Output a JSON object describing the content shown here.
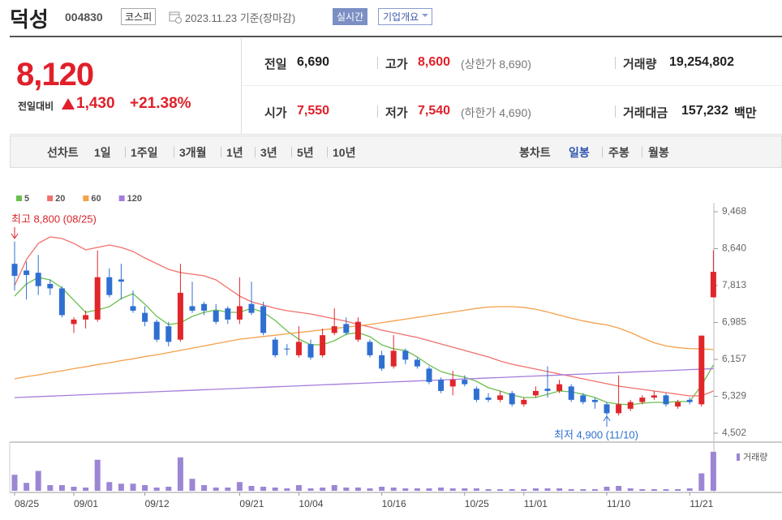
{
  "header": {
    "name": "덕성",
    "code": "004830",
    "market": "코스피",
    "date": "2023.11.23 기준(장마감)",
    "realtime": "실시간",
    "company_info": "기업개요"
  },
  "quote": {
    "price": "8,120",
    "change_label": "전일대비",
    "change": "1,430",
    "change_rate": "+21.38%"
  },
  "stats": [
    {
      "label": "전일",
      "value": "6,690"
    },
    {
      "label": "고가",
      "value": "8,600",
      "note": "(상한가 8,690)"
    },
    {
      "label": "거래량",
      "value": "19,254,802"
    },
    {
      "label": "시가",
      "value": "7,550"
    },
    {
      "label": "저가",
      "value": "7,540",
      "note": "(하한가 4,690)"
    },
    {
      "label": "거래대금",
      "value": "157,232",
      "unit": "백만"
    }
  ],
  "tabs": {
    "line_label": "선차트",
    "line_periods": [
      "1일",
      "1주일",
      "3개월",
      "1년",
      "3년",
      "5년",
      "10년"
    ],
    "candle_label": "봉차트",
    "candle_periods": [
      "일봉",
      "주봉",
      "월봉"
    ]
  },
  "chart_data": {
    "type": "candlestick",
    "categories": [
      "08/25",
      null,
      null,
      null,
      null,
      "09/01",
      null,
      null,
      null,
      null,
      null,
      "09/12",
      null,
      null,
      null,
      null,
      null,
      null,
      null,
      "09/21",
      null,
      null,
      null,
      null,
      "10/04",
      null,
      null,
      null,
      null,
      null,
      null,
      "10/16",
      null,
      null,
      null,
      null,
      null,
      null,
      "10/25",
      null,
      null,
      null,
      null,
      "11/01",
      null,
      null,
      null,
      null,
      null,
      null,
      "11/10",
      null,
      null,
      null,
      null,
      null,
      null,
      "11/21",
      null,
      null
    ],
    "open": [
      8300,
      8150,
      8100,
      7850,
      7750,
      6950,
      7050,
      7050,
      8000,
      7950,
      7350,
      7200,
      7000,
      6900,
      6600,
      7350,
      7400,
      7250,
      7300,
      7050,
      7400,
      7350,
      6600,
      6400,
      6250,
      6500,
      6250,
      6750,
      6950,
      6600,
      6550,
      6250,
      6000,
      6350,
      6150,
      5950,
      5700,
      5550,
      5700,
      5500,
      5300,
      5250,
      5400,
      5150,
      5350,
      5500,
      5450,
      5550,
      5350,
      5250,
      5150,
      4950,
      5050,
      5200,
      5300,
      5350,
      5100,
      5250,
      5150,
      7550
    ],
    "high": [
      8800,
      8350,
      8500,
      7950,
      7800,
      7100,
      7250,
      8600,
      8200,
      8300,
      7700,
      7350,
      7050,
      7000,
      8300,
      7900,
      7450,
      7400,
      7350,
      8000,
      7900,
      7450,
      6650,
      6500,
      6900,
      6600,
      6850,
      7300,
      7100,
      7100,
      6600,
      6350,
      6700,
      6400,
      6200,
      6000,
      5750,
      5900,
      5800,
      5550,
      5400,
      5450,
      5450,
      5300,
      5550,
      6000,
      5700,
      5600,
      5400,
      5300,
      5200,
      5800,
      5250,
      5350,
      5450,
      5400,
      5250,
      5300,
      6690,
      8600
    ],
    "low": [
      7700,
      7500,
      7600,
      7600,
      7100,
      6750,
      6850,
      7000,
      7550,
      7500,
      7200,
      6900,
      6550,
      6450,
      6550,
      7200,
      7150,
      6950,
      6950,
      6950,
      7150,
      6700,
      6200,
      6250,
      6200,
      6150,
      6200,
      6700,
      6700,
      6550,
      6200,
      5900,
      5950,
      6050,
      5950,
      5600,
      5400,
      5350,
      5550,
      5200,
      5200,
      5200,
      5100,
      5100,
      5300,
      5300,
      5400,
      5200,
      5150,
      5050,
      4900,
      4900,
      5000,
      5150,
      5250,
      5100,
      5050,
      5150,
      5100,
      7540
    ],
    "close": [
      8030,
      8050,
      7800,
      7750,
      7150,
      7050,
      7150,
      8000,
      7600,
      7900,
      7250,
      7000,
      6600,
      6550,
      7650,
      7250,
      7250,
      7000,
      7050,
      7350,
      7200,
      6750,
      6250,
      6380,
      6550,
      6200,
      6700,
      6900,
      6750,
      7000,
      6250,
      5950,
      6350,
      6150,
      6000,
      5650,
      5450,
      5700,
      5600,
      5250,
      5250,
      5350,
      5150,
      5250,
      5450,
      5450,
      5600,
      5250,
      5200,
      5200,
      4950,
      5150,
      5200,
      5300,
      5350,
      5150,
      5200,
      5200,
      6690,
      8120
    ],
    "up_color": "#e0262a",
    "down_color": "#2f6fd1",
    "series": [
      {
        "name": "5",
        "color": "#6cbf4f",
        "values": [
          7576,
          7849,
          7995,
          7940,
          7758,
          7485,
          7212,
          7267,
          7340,
          7522,
          7630,
          7394,
          7121,
          6939,
          6976,
          7121,
          7212,
          7267,
          7212,
          7212,
          7303,
          7212,
          7030,
          6794,
          6612,
          6485,
          6485,
          6576,
          6721,
          6758,
          6667,
          6485,
          6394,
          6357,
          6212,
          6030,
          5884,
          5812,
          5757,
          5666,
          5521,
          5448,
          5357,
          5302,
          5302,
          5375,
          5448,
          5430,
          5375,
          5302,
          5193,
          5157,
          5139,
          5175,
          5193,
          5193,
          5211,
          5211,
          5575,
          6030
        ]
      },
      {
        "name": "20",
        "color": "#f0706c",
        "values": [
          7813,
          8395,
          8758,
          8904,
          8868,
          8758,
          8613,
          8667,
          8722,
          8667,
          8577,
          8431,
          8304,
          8176,
          8104,
          8067,
          8031,
          7940,
          7758,
          7576,
          7449,
          7376,
          7303,
          7249,
          7212,
          7176,
          7121,
          7067,
          7012,
          6939,
          6885,
          6812,
          6758,
          6703,
          6648,
          6576,
          6503,
          6430,
          6357,
          6285,
          6212,
          6121,
          6048,
          5994,
          5939,
          5884,
          5830,
          5775,
          5721,
          5666,
          5612,
          5557,
          5521,
          5484,
          5448,
          5412,
          5375,
          5339,
          5339,
          5448
        ]
      },
      {
        "name": "60",
        "color": "#f5a04b",
        "values": [
          5720,
          5770,
          5810,
          5860,
          5900,
          5950,
          5990,
          6040,
          6080,
          6130,
          6170,
          6220,
          6260,
          6310,
          6360,
          6410,
          6460,
          6510,
          6560,
          6610,
          6640,
          6670,
          6700,
          6730,
          6760,
          6790,
          6820,
          6850,
          6880,
          6910,
          6940,
          6980,
          7020,
          7060,
          7100,
          7140,
          7180,
          7220,
          7260,
          7300,
          7330,
          7340,
          7340,
          7320,
          7280,
          7220,
          7150,
          7080,
          7020,
          6970,
          6930,
          6860,
          6760,
          6640,
          6530,
          6460,
          6420,
          6400,
          6390,
          6380
        ]
      },
      {
        "name": "120",
        "color": "#a57ddb",
        "values": [
          5300,
          5311,
          5322,
          5333,
          5344,
          5355,
          5366,
          5377,
          5388,
          5399,
          5410,
          5421,
          5432,
          5443,
          5454,
          5465,
          5476,
          5487,
          5498,
          5509,
          5520,
          5531,
          5542,
          5553,
          5564,
          5575,
          5586,
          5597,
          5608,
          5619,
          5630,
          5641,
          5652,
          5663,
          5674,
          5685,
          5696,
          5707,
          5718,
          5729,
          5740,
          5751,
          5762,
          5773,
          5784,
          5795,
          5806,
          5817,
          5828,
          5839,
          5850,
          5861,
          5872,
          5883,
          5894,
          5905,
          5916,
          5927,
          5938,
          5949
        ]
      }
    ],
    "volume": {
      "name": "거래량",
      "color": "#9c86d4",
      "ylim": [
        0,
        20000000
      ],
      "values": [
        7900000,
        3900000,
        9800000,
        2800000,
        2800000,
        2000000,
        1600000,
        15300000,
        4300000,
        3500000,
        3500000,
        2800000,
        1600000,
        2000000,
        16500000,
        5900000,
        2800000,
        1600000,
        1600000,
        4300000,
        2400000,
        2000000,
        1600000,
        1200000,
        2800000,
        1200000,
        1600000,
        2800000,
        1600000,
        1600000,
        1200000,
        2000000,
        1600000,
        1200000,
        1200000,
        1200000,
        1600000,
        1200000,
        1200000,
        1200000,
        800000,
        800000,
        800000,
        800000,
        1200000,
        1200000,
        1200000,
        800000,
        800000,
        800000,
        2000000,
        2400000,
        1200000,
        800000,
        800000,
        800000,
        800000,
        1200000,
        8600000,
        19254802
      ]
    },
    "annotations": [
      {
        "text": "최고 8,800 (08/25)"
      },
      {
        "text": "최저 4,900 (11/10)"
      }
    ],
    "ylim": [
      4502,
      9468
    ],
    "yticks": [
      {
        "value": 4502,
        "label": "4,502"
      },
      {
        "value": 5329,
        "label": "5,329"
      },
      {
        "value": 6157,
        "label": "6,157"
      },
      {
        "value": 6985,
        "label": "6,985"
      },
      {
        "value": 7813,
        "label": "7,813"
      },
      {
        "value": 8640,
        "label": "8,640"
      },
      {
        "value": 9468,
        "label": "9,468"
      }
    ]
  }
}
